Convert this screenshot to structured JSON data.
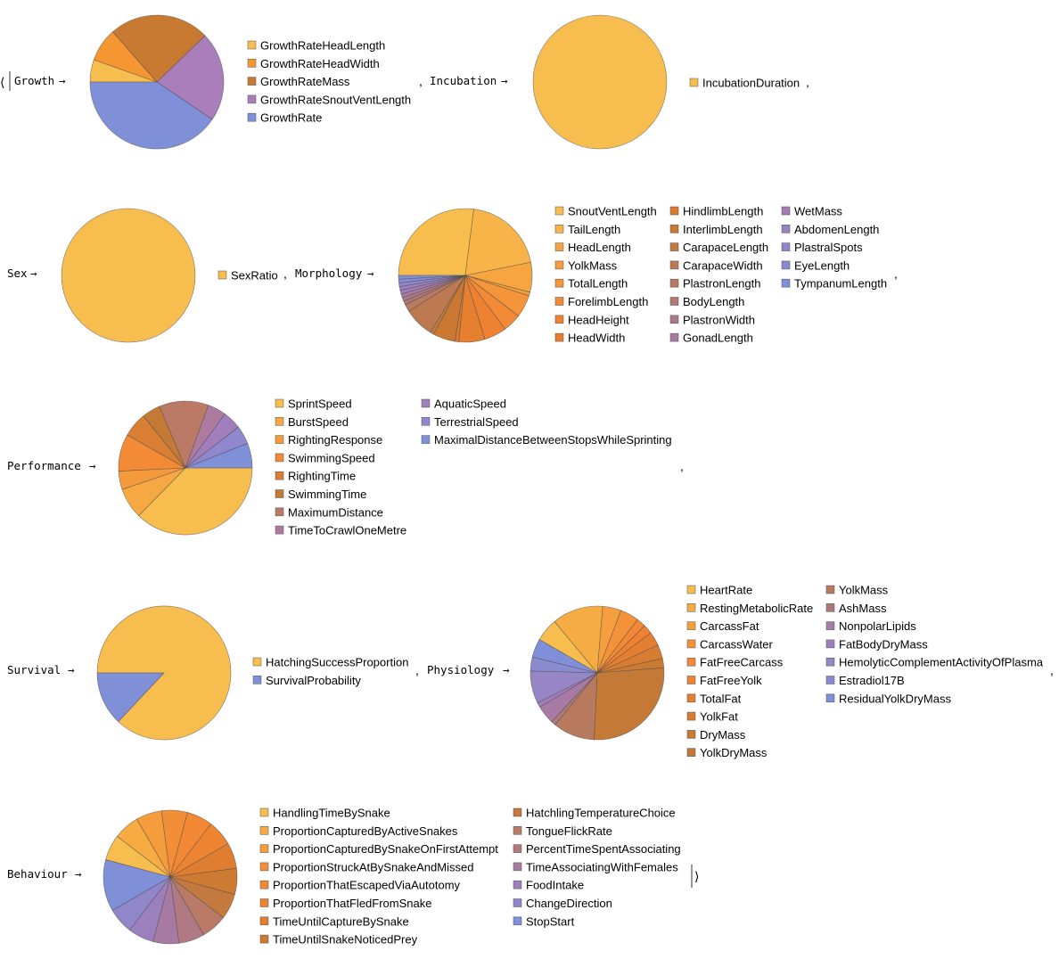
{
  "colors": {
    "text": "#000000",
    "slice_edge": "#4a4a4a"
  },
  "glyphs": {
    "assoc_open": "⟨",
    "assoc_close": "⟩",
    "arrow": "→",
    "comma": ","
  },
  "chart_data": [
    {
      "type": "pie",
      "key": "Growth",
      "labels": [
        "GrowthRateHeadLength",
        "GrowthRateHeadWidth",
        "GrowthRateMass",
        "GrowthRateSnoutVentLength",
        "GrowthRate"
      ],
      "values": [
        2,
        3,
        9,
        8,
        15
      ],
      "colors": [
        "#f8bd4f",
        "#f59633",
        "#c87a33",
        "#a97eba",
        "#7f8fd8"
      ]
    },
    {
      "type": "pie",
      "key": "Incubation",
      "labels": [
        "IncubationDuration"
      ],
      "values": [
        1
      ],
      "colors": [
        "#f8bd4f"
      ]
    },
    {
      "type": "pie",
      "key": "Sex",
      "labels": [
        "SexRatio"
      ],
      "values": [
        1
      ],
      "colors": [
        "#f8bd4f"
      ]
    },
    {
      "type": "pie",
      "key": "Morphology",
      "labels": [
        "SnoutVentLength",
        "TailLength",
        "HeadLength",
        "YolkMass",
        "TotalLength",
        "ForelimbLength",
        "HeadHeight",
        "HeadWidth",
        "HindlimbLength",
        "InterlimbLength",
        "CarapaceLength",
        "CarapaceWidth",
        "PlastronLength",
        "BodyLength",
        "PlastronWidth",
        "GonadLength",
        "WetMass",
        "AbdomenLength",
        "PlastralSpots",
        "EyeLength",
        "TympanumLength"
      ],
      "values": [
        30,
        22,
        8,
        1,
        6,
        5,
        6,
        7,
        1,
        6,
        1,
        8,
        2,
        1,
        1,
        1,
        1,
        1,
        1,
        1,
        1
      ],
      "colors": [
        "#f8bd4f",
        "#f8b449",
        "#f6a541",
        "#f59f3c",
        "#f4953a",
        "#f38b36",
        "#ef8232",
        "#e77f30",
        "#da7b30",
        "#cb7932",
        "#c17a40",
        "#bd7a50",
        "#b77a62",
        "#b07a72",
        "#ab7a8a",
        "#a87aa2",
        "#a37db4",
        "#9a82c0",
        "#9187c8",
        "#868bd0",
        "#7f8fd8"
      ]
    },
    {
      "type": "pie",
      "key": "Performance",
      "labels": [
        "SprintSpeed",
        "BurstSpeed",
        "RightingResponse",
        "SwimmingSpeed",
        "RightingTime",
        "SwimmingTime",
        "MaximumDistance",
        "TimeToCrawlOneMetre",
        "AquaticSpeed",
        "TerrestrialSpeed",
        "MaximalDistanceBetweenStopsWhileSprinting"
      ],
      "values": [
        25,
        5,
        3,
        6,
        4,
        3,
        8,
        3,
        3,
        3,
        4
      ],
      "colors": [
        "#f8bd4f",
        "#f6a942",
        "#f59a3c",
        "#f38b36",
        "#d97e32",
        "#c47a34",
        "#bb7a66",
        "#ad7aa0",
        "#a07fbc",
        "#8f88cc",
        "#7f8fd8"
      ]
    },
    {
      "type": "pie",
      "key": "Survival",
      "labels": [
        "HatchingSuccessProportion",
        "SurvivalProbability"
      ],
      "values": [
        87,
        13
      ],
      "colors": [
        "#f8bd4f",
        "#7f8fd8"
      ]
    },
    {
      "type": "pie",
      "key": "Physiology",
      "labels": [
        "HeartRate",
        "RestingMetabolicRate",
        "CarcassFat",
        "CarcassWater",
        "FatFreeCarcass",
        "FatFreeYolk",
        "TotalFat",
        "YolkFat",
        "DryMass",
        "YolkDryMass",
        "YolkMass",
        "AshMass",
        "NonpolarLipids",
        "FatBodyDryMass",
        "HemolyticComplementActivityOfPlasma",
        "Estradiol17B",
        "ResidualYolkDryMass"
      ],
      "values": [
        5,
        11,
        4,
        4,
        2,
        2,
        3,
        3,
        2,
        24,
        9,
        1,
        4,
        1,
        7,
        3,
        4
      ],
      "colors": [
        "#f8bd4f",
        "#f6ac44",
        "#f59e3d",
        "#f4923a",
        "#f38836",
        "#ef8232",
        "#e47f31",
        "#d77c31",
        "#c97a33",
        "#c47a36",
        "#b87a5e",
        "#ae7a78",
        "#a87aa6",
        "#9f80bc",
        "#9686c6",
        "#8a8bcf",
        "#7f8fd8"
      ]
    },
    {
      "type": "pie",
      "key": "Behaviour",
      "labels": [
        "HandlingTimeBySnake",
        "ProportionCapturedByActiveSnakes",
        "ProportionCapturedBySnakeOnFirstAttempt",
        "ProportionStruckAtBySnakeAndMissed",
        "ProportionThatEscapedViaAutotomy",
        "ProportionThatFledFromSnake",
        "TimeUntilCaptureBySnake",
        "TimeUntilSnakeNoticedPrey",
        "HatchlingTemperatureChoice",
        "TongueFlickRate",
        "PercentTimeSpentAssociating",
        "TimeAssociatingWithFemales",
        "FoodIntake",
        "ChangeDirection",
        "StopStart"
      ],
      "values": [
        1,
        1,
        1,
        1,
        1,
        1,
        1,
        1,
        1,
        1,
        1,
        1,
        1,
        1,
        2
      ],
      "colors": [
        "#f8bd4f",
        "#f6ab43",
        "#f59c3d",
        "#f38e38",
        "#f38834",
        "#ed8432",
        "#df7e31",
        "#cd7a33",
        "#c47a3e",
        "#b97a68",
        "#b07a84",
        "#a77aa4",
        "#9c80be",
        "#8f87c8",
        "#7f8fd8"
      ]
    }
  ]
}
